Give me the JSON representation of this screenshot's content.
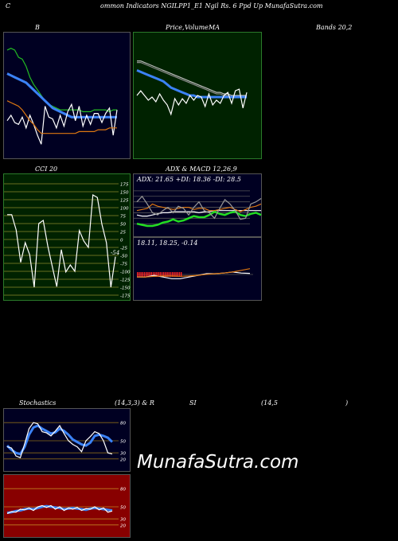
{
  "header": {
    "prefix": "C",
    "title": "ommon Indicators NGILPP1_E1 Ngil Rs. 6 Ppd Up MunafaSutra.com"
  },
  "labels": {
    "bb_left": "B",
    "bb_right": "Price,",
    "volume": "Volume",
    "ma": "MA",
    "bands": "Bands 20,2",
    "cci": "CCI 20",
    "adx_macd": "ADX  & MACD 12,26,9",
    "adx_values": "ADX: 21.65  +DI: 18.36  -DI: 28.5",
    "macd_values": "18.11,  18.25,  -0.14",
    "stoch_a": "Stochastics",
    "stoch_b": "(14,3,3) & R",
    "stoch_c": "SI",
    "stoch_d": "(14,5",
    "stoch_e": ")",
    "watermark": "MunafaSutra.com",
    "cci_current": "-54"
  },
  "chart_data": [
    {
      "type": "line",
      "name": "bollinger",
      "series": [
        {
          "color": "#22bb22",
          "values": [
            88,
            89,
            88,
            84,
            83,
            79,
            73,
            69,
            66,
            63,
            60,
            58,
            57,
            56,
            55,
            55,
            55,
            55,
            55,
            55,
            54,
            54,
            54,
            55,
            55,
            55,
            55,
            54,
            55,
            55
          ]
        },
        {
          "color": "#3b82f6",
          "values": [
            75,
            74,
            73,
            72,
            71,
            70,
            68,
            66,
            64,
            62,
            60,
            58,
            56,
            55,
            54,
            53,
            52,
            51,
            51,
            51,
            51,
            51,
            51,
            51,
            51,
            51,
            51,
            51,
            51,
            51
          ]
        },
        {
          "color": "#ffffff",
          "values": [
            49,
            52,
            48,
            47,
            51,
            45,
            52,
            47,
            41,
            36,
            57,
            51,
            50,
            45,
            52,
            46,
            54,
            58,
            49,
            57,
            46,
            52,
            47,
            53,
            53,
            48,
            53,
            56,
            41,
            55
          ]
        },
        {
          "color": "#dd7711",
          "values": [
            60,
            59,
            58,
            57,
            55,
            52,
            49,
            47,
            44,
            42,
            42,
            42,
            42,
            42,
            42,
            42,
            42,
            42,
            42,
            43,
            43,
            43,
            43,
            43,
            44,
            44,
            44,
            45,
            45,
            45
          ]
        }
      ]
    },
    {
      "type": "line",
      "name": "price_ma",
      "series": [
        {
          "color": "#bbbbbb",
          "values": [
            80,
            80,
            79,
            78,
            77,
            76,
            75,
            74,
            73,
            72,
            71,
            70,
            69,
            68,
            67,
            66,
            65,
            64,
            63,
            62,
            61,
            60,
            60,
            59,
            59,
            58,
            58,
            58,
            58,
            58
          ]
        },
        {
          "color": "#888888",
          "values": [
            79,
            79,
            78,
            77,
            76,
            75,
            74,
            73,
            72,
            71,
            70,
            69,
            68,
            67,
            66,
            65,
            64,
            63,
            62,
            61,
            60,
            59,
            59,
            58,
            58,
            57,
            57,
            57,
            57,
            57
          ]
        },
        {
          "color": "#3b82f6",
          "values": [
            74,
            73,
            72,
            71,
            70,
            69,
            68,
            67,
            65,
            63,
            62,
            61,
            60,
            59,
            58,
            58,
            57,
            57,
            57,
            57,
            57,
            57,
            57,
            57,
            57,
            57,
            57,
            57,
            57,
            57
          ]
        },
        {
          "color": "#ffffff",
          "values": [
            58,
            61,
            58,
            55,
            57,
            54,
            59,
            55,
            52,
            46,
            56,
            52,
            56,
            53,
            58,
            55,
            58,
            57,
            51,
            59,
            52,
            55,
            53,
            58,
            60,
            53,
            61,
            62,
            50,
            60
          ]
        }
      ]
    },
    {
      "type": "line",
      "name": "cci",
      "yticks": [
        175,
        150,
        125,
        100,
        75,
        50,
        25,
        0,
        -25,
        -50,
        -75,
        -100,
        -125,
        -150,
        -175
      ],
      "series": [
        {
          "color": "#ffffff",
          "values": [
            78,
            78,
            30,
            -72,
            -10,
            -48,
            -150,
            50,
            60,
            -20,
            -85,
            -148,
            -32,
            -102,
            -80,
            -100,
            28,
            -5,
            -25,
            140,
            132,
            48,
            -10,
            -150,
            -54
          ]
        }
      ]
    },
    {
      "type": "line",
      "name": "adx",
      "series": [
        {
          "color": "#ffffff",
          "values": [
            18,
            17,
            17,
            18,
            19,
            20,
            20,
            21,
            21,
            21,
            21,
            21,
            20,
            21,
            21,
            22,
            22,
            22,
            22,
            22,
            22,
            22,
            22,
            22,
            22
          ]
        },
        {
          "color": "#22dd22",
          "values": [
            10,
            9,
            8,
            8,
            9,
            11,
            12,
            14,
            12,
            13,
            15,
            17,
            16,
            16,
            18,
            21,
            19,
            18,
            20,
            21,
            18,
            17,
            19,
            20,
            18
          ]
        },
        {
          "color": "#dd7711",
          "values": [
            22,
            23,
            24,
            28,
            26,
            25,
            24,
            23,
            24,
            25,
            25,
            23,
            24,
            24,
            22,
            22,
            23,
            24,
            25,
            23,
            21,
            23,
            25,
            26,
            28
          ]
        },
        {
          "color": "#999999",
          "values": [
            30,
            35,
            28,
            20,
            18,
            22,
            25,
            20,
            26,
            24,
            18,
            25,
            30,
            22,
            20,
            15,
            24,
            32,
            28,
            22,
            14,
            15,
            28,
            30,
            33
          ]
        }
      ]
    },
    {
      "type": "line",
      "name": "macd",
      "series": [
        {
          "color": "#ffffff",
          "values": [
            18.0,
            18.0,
            18.05,
            18.0,
            17.95,
            17.95,
            18.0,
            18.05,
            18.1,
            18.1,
            18.12,
            18.15,
            18.12,
            18.11
          ]
        },
        {
          "color": "#dd7711",
          "values": [
            18.0,
            18.0,
            18.02,
            18.03,
            18.03,
            18.02,
            18.03,
            18.05,
            18.08,
            18.1,
            18.12,
            18.15,
            18.2,
            18.25
          ]
        }
      ]
    },
    {
      "type": "line",
      "name": "stochastics",
      "yticks": [
        80,
        50,
        30,
        20
      ],
      "series": [
        {
          "color": "#3b82f6",
          "values": [
            42,
            35,
            30,
            28,
            40,
            60,
            72,
            75,
            70,
            66,
            62,
            64,
            70,
            66,
            60,
            52,
            48,
            44,
            42,
            47,
            58,
            60,
            58,
            55,
            48
          ]
        },
        {
          "color": "#ffffff",
          "values": [
            40,
            38,
            25,
            22,
            45,
            70,
            80,
            78,
            65,
            63,
            58,
            66,
            75,
            62,
            50,
            44,
            40,
            32,
            50,
            57,
            65,
            62,
            50,
            30,
            28
          ]
        }
      ]
    },
    {
      "type": "line",
      "name": "rsi",
      "yticks": [
        80,
        50,
        30,
        20
      ],
      "series": [
        {
          "color": "#3b82f6",
          "values": [
            40,
            41,
            43,
            44,
            46,
            47,
            46,
            48,
            50,
            51,
            50,
            49,
            48,
            46,
            47,
            48,
            47,
            46,
            45,
            47,
            48,
            47,
            46,
            45,
            44
          ]
        },
        {
          "color": "#ffffff",
          "values": [
            39,
            42,
            41,
            46,
            45,
            48,
            44,
            50,
            52,
            49,
            52,
            46,
            50,
            44,
            48,
            46,
            49,
            44,
            47,
            46,
            50,
            45,
            48,
            41,
            43
          ]
        }
      ]
    }
  ]
}
